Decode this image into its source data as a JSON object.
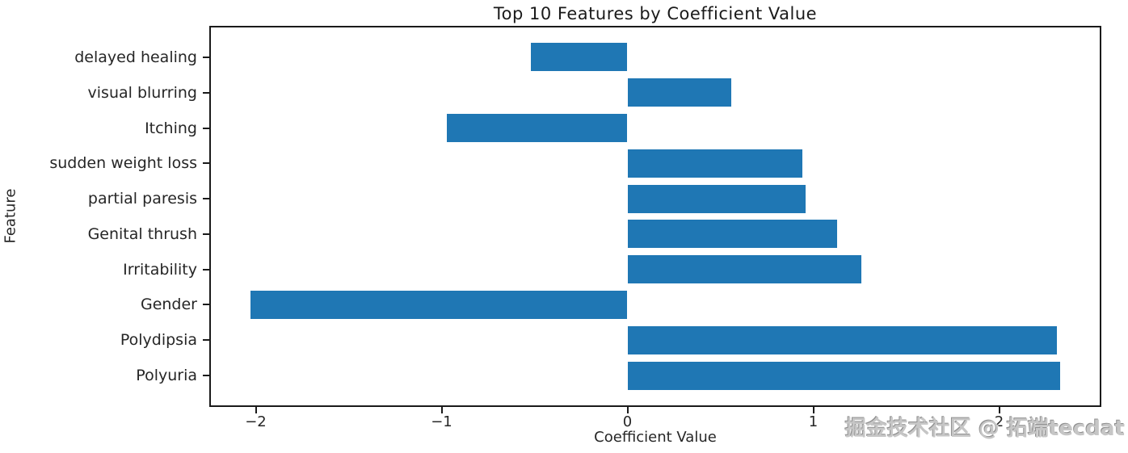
{
  "chart_data": {
    "type": "bar",
    "orientation": "horizontal",
    "title": "Top 10 Features by Coefficient Value",
    "xlabel": "Coefficient Value",
    "ylabel": "Feature",
    "categories": [
      "delayed healing",
      "visual blurring",
      "Itching",
      "sudden weight loss",
      "partial paresis",
      "Genital thrush",
      "Irritability",
      "Gender",
      "Polydipsia",
      "Polyuria"
    ],
    "values": [
      -0.52,
      0.56,
      -0.97,
      0.94,
      0.96,
      1.13,
      1.26,
      -2.03,
      2.31,
      2.33
    ],
    "series_name": "Coefficient Value",
    "xlim": [
      -2.25,
      2.55
    ],
    "x_ticks": [
      -2,
      -1,
      0,
      1,
      2
    ],
    "ylim_units": [
      -0.89,
      9.89
    ],
    "bar_height_units": 0.8,
    "bar_color": "#1f77b4",
    "grid": false,
    "legend": null
  },
  "watermark": {
    "text": "掘金技术社区 @ 拓端tecdat"
  }
}
